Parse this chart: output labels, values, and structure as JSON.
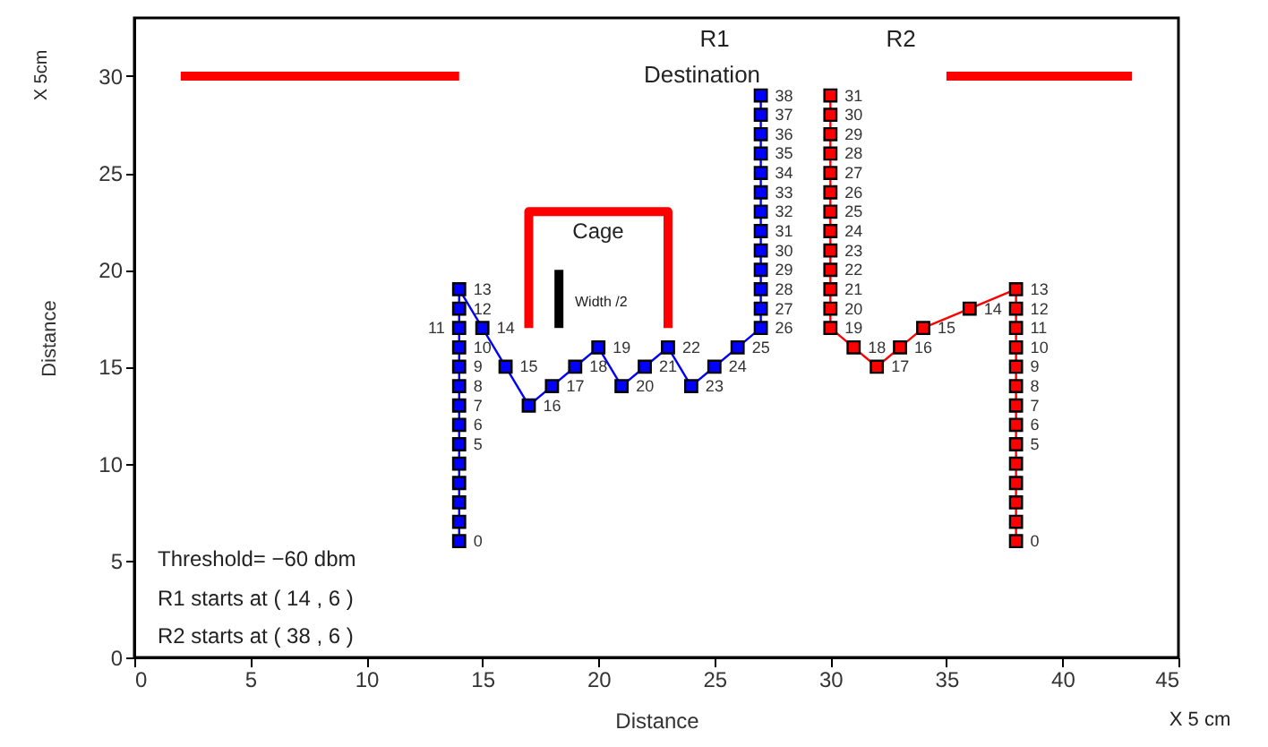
{
  "chart_data": {
    "type": "line",
    "xlabel": "Distance",
    "ylabel": "Distance",
    "xlim": [
      0,
      45
    ],
    "xticks": [
      0,
      5,
      10,
      15,
      20,
      25,
      30,
      35,
      40,
      45
    ],
    "ylim": [
      0,
      33
    ],
    "yticks": [
      0,
      5,
      10,
      15,
      20,
      25,
      30
    ],
    "grid": false,
    "marker": "square",
    "line_style": "solid",
    "series": [
      {
        "color": "#0000ff",
        "x": [
          14,
          14,
          14,
          14,
          14,
          14,
          14,
          14,
          14,
          14,
          14,
          14,
          14,
          14,
          15,
          16,
          17,
          18,
          19,
          20,
          21,
          22,
          23,
          24,
          25,
          26,
          27,
          27,
          27,
          27,
          27,
          27,
          27,
          27,
          27,
          27,
          27,
          27,
          27
        ],
        "values": [
          6,
          7,
          8,
          9,
          10,
          11,
          12,
          13,
          14,
          15,
          16,
          17,
          18,
          19,
          17,
          15,
          13,
          14,
          15,
          16,
          14,
          15,
          16,
          14,
          15,
          16,
          17,
          18,
          19,
          20,
          21,
          22,
          23,
          24,
          25,
          26,
          27,
          28,
          29
        ]
      },
      {
        "color": "#ff0000",
        "x": [
          38,
          38,
          38,
          38,
          38,
          38,
          38,
          38,
          38,
          38,
          38,
          38,
          38,
          38,
          36,
          34,
          33,
          32,
          31,
          30,
          30,
          30,
          30,
          30,
          30,
          30,
          30,
          30,
          30,
          30,
          30,
          30
        ],
        "values": [
          6,
          7,
          8,
          9,
          10,
          11,
          12,
          13,
          14,
          15,
          16,
          17,
          18,
          19,
          18,
          17,
          16,
          15,
          16,
          17,
          18,
          19,
          20,
          21,
          22,
          23,
          24,
          25,
          26,
          27,
          28,
          29
        ]
      },
      {
        "color": "#ff0000",
        "marker": "none",
        "x": [
          2,
          14
        ],
        "values": [
          30,
          30
        ]
      },
      {
        "color": "#ff0000",
        "marker": "none",
        "x": [
          35,
          43
        ],
        "values": [
          30,
          30
        ]
      },
      {
        "color": "#ff0000",
        "marker": "none",
        "x": [
          17,
          17,
          23,
          23
        ],
        "values": [
          17,
          23,
          23,
          17
        ]
      },
      {
        "color": "#000000",
        "marker": "none",
        "x": [
          18.3,
          18.3
        ],
        "values": [
          17,
          20
        ]
      }
    ],
    "annotations": [
      "Destination",
      "R1",
      "R2",
      "Cage",
      "Width /2",
      "Threshold= −60 dbm",
      "R1 starts at ( 14 , 6 )",
      "R2 starts at ( 38 , 6 )",
      "X 5 cm",
      "X 5cm",
      {
        "text": "0",
        "x": 14,
        "y": 6
      },
      {
        "text": "5",
        "x": 14,
        "y": 11
      },
      {
        "text": "6",
        "x": 14,
        "y": 12
      },
      {
        "text": "7",
        "x": 14,
        "y": 13
      },
      {
        "text": "8",
        "x": 14,
        "y": 14
      },
      {
        "text": "9",
        "x": 14,
        "y": 15
      },
      {
        "text": "10",
        "x": 14,
        "y": 16
      },
      {
        "text": "11",
        "x": 14,
        "y": 17
      },
      {
        "text": "12",
        "x": 14,
        "y": 18
      },
      {
        "text": "13",
        "x": 14,
        "y": 19
      },
      {
        "text": "14",
        "x": 15,
        "y": 17
      },
      {
        "text": "15",
        "x": 16,
        "y": 15
      },
      {
        "text": "16",
        "x": 17,
        "y": 13
      },
      {
        "text": "17",
        "x": 18,
        "y": 14
      },
      {
        "text": "18",
        "x": 19,
        "y": 15
      },
      {
        "text": "19",
        "x": 20,
        "y": 16
      },
      {
        "text": "20",
        "x": 21,
        "y": 14
      },
      {
        "text": "21",
        "x": 22,
        "y": 15
      },
      {
        "text": "22",
        "x": 23,
        "y": 16
      },
      {
        "text": "23",
        "x": 24,
        "y": 14
      },
      {
        "text": "24",
        "x": 25,
        "y": 15
      },
      {
        "text": "25",
        "x": 26,
        "y": 16
      },
      {
        "text": "26",
        "x": 27,
        "y": 17
      },
      {
        "text": "27",
        "x": 27,
        "y": 18
      },
      {
        "text": "28",
        "x": 27,
        "y": 19
      },
      {
        "text": "29",
        "x": 27,
        "y": 20
      },
      {
        "text": "30",
        "x": 27,
        "y": 21
      },
      {
        "text": "31",
        "x": 27,
        "y": 22
      },
      {
        "text": "32",
        "x": 27,
        "y": 23
      },
      {
        "text": "33",
        "x": 27,
        "y": 24
      },
      {
        "text": "34",
        "x": 27,
        "y": 25
      },
      {
        "text": "35",
        "x": 27,
        "y": 26
      },
      {
        "text": "36",
        "x": 27,
        "y": 27
      },
      {
        "text": "37",
        "x": 27,
        "y": 28
      },
      {
        "text": "38",
        "x": 27,
        "y": 29
      },
      {
        "text": "0",
        "x": 38,
        "y": 6
      },
      {
        "text": "5",
        "x": 38,
        "y": 11
      },
      {
        "text": "6",
        "x": 38,
        "y": 12
      },
      {
        "text": "7",
        "x": 38,
        "y": 13
      },
      {
        "text": "8",
        "x": 38,
        "y": 14
      },
      {
        "text": "9",
        "x": 38,
        "y": 15
      },
      {
        "text": "10",
        "x": 38,
        "y": 16
      },
      {
        "text": "11",
        "x": 38,
        "y": 17
      },
      {
        "text": "12",
        "x": 38,
        "y": 18
      },
      {
        "text": "13",
        "x": 38,
        "y": 19
      },
      {
        "text": "14",
        "x": 36,
        "y": 18
      },
      {
        "text": "15",
        "x": 34,
        "y": 17
      },
      {
        "text": "16",
        "x": 33,
        "y": 16
      },
      {
        "text": "17",
        "x": 32,
        "y": 15
      },
      {
        "text": "18",
        "x": 31,
        "y": 16
      },
      {
        "text": "19",
        "x": 30,
        "y": 17
      },
      {
        "text": "20",
        "x": 30,
        "y": 18
      },
      {
        "text": "21",
        "x": 30,
        "y": 19
      },
      {
        "text": "22",
        "x": 30,
        "y": 20
      },
      {
        "text": "23",
        "x": 30,
        "y": 21
      },
      {
        "text": "24",
        "x": 30,
        "y": 22
      },
      {
        "text": "25",
        "x": 30,
        "y": 23
      },
      {
        "text": "26",
        "x": 30,
        "y": 24
      },
      {
        "text": "27",
        "x": 30,
        "y": 25
      },
      {
        "text": "28",
        "x": 30,
        "y": 26
      },
      {
        "text": "29",
        "x": 30,
        "y": 27
      },
      {
        "text": "30",
        "x": 30,
        "y": 28
      },
      {
        "text": "31",
        "x": 30,
        "y": 29
      }
    ]
  }
}
